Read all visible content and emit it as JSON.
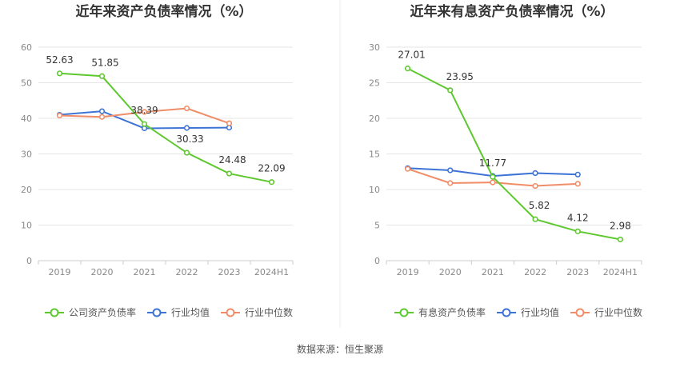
{
  "source": "数据来源：恒生聚源",
  "colors": {
    "main": "#5ec82f",
    "avg": "#3e73d6",
    "median": "#f08c67",
    "grid": "#e6e6e6",
    "axis": "#cccccc"
  },
  "chart_data": [
    {
      "type": "line",
      "title": "近年来资产负债率情况（%）",
      "categories": [
        "2019",
        "2020",
        "2021",
        "2022",
        "2023",
        "2024H1"
      ],
      "ylim": [
        0,
        60
      ],
      "yticks": [
        0,
        10,
        20,
        30,
        40,
        50,
        60
      ],
      "grid": true,
      "legend_position": "bottom",
      "series": [
        {
          "name": "公司资产负债率",
          "color": "#5ec82f",
          "values": [
            52.63,
            51.85,
            38.39,
            30.33,
            24.48,
            22.09
          ],
          "labels": [
            "52.63",
            "51.85",
            "38.39",
            "30.33",
            "24.48",
            "22.09"
          ]
        },
        {
          "name": "行业均值",
          "color": "#3e73d6",
          "values": [
            41.0,
            42.0,
            37.2,
            37.3,
            37.4,
            null
          ]
        },
        {
          "name": "行业中位数",
          "color": "#f08c67",
          "values": [
            40.8,
            40.4,
            41.8,
            42.8,
            38.6,
            null
          ]
        }
      ]
    },
    {
      "type": "line",
      "title": "近年来有息资产负债率情况（%）",
      "categories": [
        "2019",
        "2020",
        "2021",
        "2022",
        "2023",
        "2024H1"
      ],
      "ylim": [
        0,
        30
      ],
      "yticks": [
        0,
        5,
        10,
        15,
        20,
        25,
        30
      ],
      "grid": true,
      "legend_position": "bottom",
      "series": [
        {
          "name": "有息资产负债率",
          "color": "#5ec82f",
          "values": [
            27.01,
            23.95,
            11.77,
            5.82,
            4.12,
            2.98
          ],
          "labels": [
            "27.01",
            "23.95",
            "11.77",
            "5.82",
            "4.12",
            "2.98"
          ]
        },
        {
          "name": "行业均值",
          "color": "#3e73d6",
          "values": [
            13.0,
            12.7,
            11.9,
            12.3,
            12.1,
            null
          ]
        },
        {
          "name": "行业中位数",
          "color": "#f08c67",
          "values": [
            12.9,
            10.9,
            11.0,
            10.5,
            10.8,
            null
          ]
        }
      ]
    }
  ]
}
